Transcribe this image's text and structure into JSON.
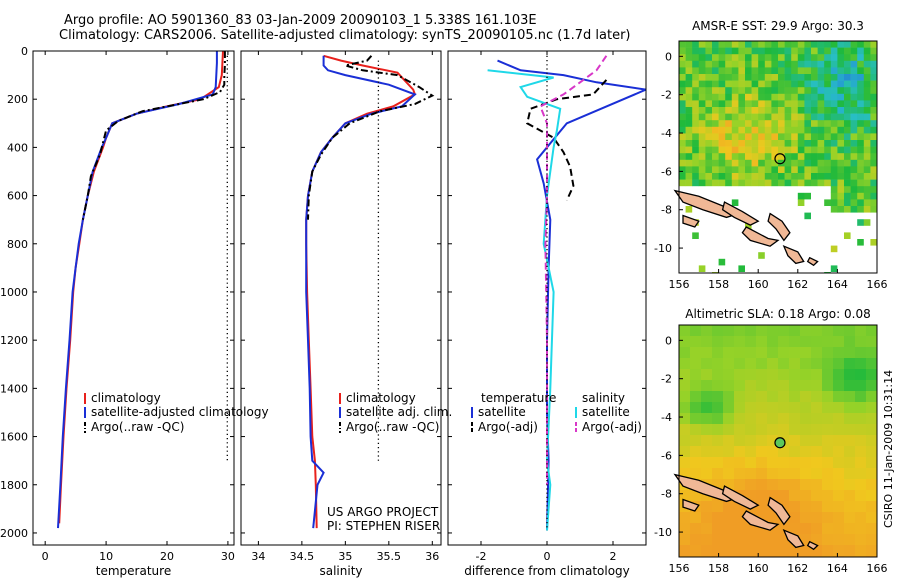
{
  "header": {
    "line1": "Argo profile: AO 5901360_83 03-Jan-2009 20090103_1 5.338S 161.103E",
    "line2": "Climatology: CARS2006. Satellite-adjusted climatology: synTS_20090105.nc (1.7d later)"
  },
  "credit": "CSIRO 11-Jan-2009 10:31:14",
  "colors": {
    "climatology": "#e8211c",
    "satellite": "#1a2fd6",
    "argo": "#000000",
    "salinity_satellite": "#1fd8e8",
    "salinity_argo": "#d838c8"
  },
  "chart_data": [
    {
      "type": "line",
      "xlabel": "temperature",
      "ylabel": "",
      "xlim": [
        -2,
        31
      ],
      "ylim": [
        2050,
        0
      ],
      "xticks": [
        0,
        10,
        20,
        30
      ],
      "yticks": [
        0,
        200,
        400,
        600,
        800,
        1000,
        1200,
        1400,
        1600,
        1800,
        2000
      ],
      "legend": [
        "climatology",
        "satellite-adjusted climatology",
        "Argo(..raw -QC)"
      ],
      "series": [
        {
          "name": "climatology",
          "style": "solid",
          "color": "#e8211c",
          "points": [
            [
              29.2,
              0
            ],
            [
              29.1,
              50
            ],
            [
              29.0,
              100
            ],
            [
              28.5,
              150
            ],
            [
              25.5,
              200
            ],
            [
              20,
              230
            ],
            [
              15,
              260
            ],
            [
              11,
              300
            ],
            [
              10,
              360
            ],
            [
              9.5,
              400
            ],
            [
              8.0,
              500
            ],
            [
              7.0,
              600
            ],
            [
              6.2,
              700
            ],
            [
              5.6,
              800
            ],
            [
              5.0,
              900
            ],
            [
              4.6,
              1000
            ],
            [
              4.1,
              1200
            ],
            [
              3.5,
              1400
            ],
            [
              3.0,
              1600
            ],
            [
              2.6,
              1800
            ],
            [
              2.3,
              1960
            ]
          ]
        },
        {
          "name": "satellite-adjusted climatology",
          "style": "solid",
          "color": "#1a2fd6",
          "points": [
            [
              28.2,
              0
            ],
            [
              28.2,
              50
            ],
            [
              28.1,
              100
            ],
            [
              28.0,
              150
            ],
            [
              27.5,
              180
            ],
            [
              22,
              220
            ],
            [
              15,
              260
            ],
            [
              11,
              300
            ],
            [
              10,
              360
            ],
            [
              9.3,
              400
            ],
            [
              7.8,
              500
            ],
            [
              7.0,
              600
            ],
            [
              6.2,
              700
            ],
            [
              5.5,
              800
            ],
            [
              5.0,
              900
            ],
            [
              4.5,
              1000
            ],
            [
              4.0,
              1200
            ],
            [
              3.4,
              1400
            ],
            [
              2.9,
              1600
            ],
            [
              2.5,
              1800
            ],
            [
              2.1,
              1980
            ]
          ]
        },
        {
          "name": "Argo(..raw -QC)",
          "style": "dashdot",
          "color": "#000000",
          "points": [
            [
              29.5,
              0
            ],
            [
              29.5,
              60
            ],
            [
              29.4,
              100
            ],
            [
              29.4,
              140
            ],
            [
              28.7,
              170
            ],
            [
              26,
              200
            ],
            [
              20,
              230
            ],
            [
              16,
              250
            ],
            [
              12,
              290
            ],
            [
              10,
              330
            ],
            [
              9.5,
              380
            ],
            [
              9.0,
              430
            ],
            [
              7.5,
              520
            ],
            [
              7.0,
              600
            ],
            [
              6.2,
              700
            ]
          ]
        },
        {
          "name": "",
          "style": "dotted",
          "color": "#000000",
          "points": [
            [
              29.9,
              20
            ],
            [
              29.9,
              1700
            ]
          ]
        }
      ]
    },
    {
      "type": "line",
      "xlabel": "salinity",
      "ylabel": "",
      "xlim": [
        33.8,
        36.1
      ],
      "ylim": [
        2050,
        0
      ],
      "xticks": [
        34,
        34.5,
        35,
        35.5,
        36
      ],
      "legend": [
        "climatology",
        "satellite adj. clim.",
        "Argo(..raw -QC)"
      ],
      "series": [
        {
          "name": "climatology",
          "style": "solid",
          "color": "#e8211c",
          "points": [
            [
              34.75,
              20
            ],
            [
              34.95,
              40
            ],
            [
              35.2,
              60
            ],
            [
              35.6,
              90
            ],
            [
              35.78,
              160
            ],
            [
              35.8,
              180
            ],
            [
              35.55,
              230
            ],
            [
              35.25,
              260
            ],
            [
              35.0,
              300
            ],
            [
              34.85,
              360
            ],
            [
              34.72,
              420
            ],
            [
              34.62,
              500
            ],
            [
              34.57,
              600
            ],
            [
              34.55,
              700
            ],
            [
              34.55,
              800
            ],
            [
              34.56,
              1000
            ],
            [
              34.58,
              1200
            ],
            [
              34.6,
              1400
            ],
            [
              34.62,
              1600
            ],
            [
              34.65,
              1700
            ],
            [
              34.66,
              1800
            ],
            [
              34.67,
              1980
            ]
          ]
        },
        {
          "name": "satellite adj. clim.",
          "style": "solid",
          "color": "#1a2fd6",
          "points": [
            [
              34.75,
              20
            ],
            [
              34.75,
              60
            ],
            [
              34.8,
              80
            ],
            [
              35.0,
              100
            ],
            [
              35.5,
              140
            ],
            [
              35.8,
              180
            ],
            [
              35.65,
              230
            ],
            [
              35.3,
              260
            ],
            [
              35.0,
              300
            ],
            [
              34.85,
              360
            ],
            [
              34.72,
              420
            ],
            [
              34.62,
              500
            ],
            [
              34.57,
              600
            ],
            [
              34.55,
              700
            ],
            [
              34.55,
              800
            ],
            [
              34.55,
              1000
            ],
            [
              34.57,
              1200
            ],
            [
              34.59,
              1400
            ],
            [
              34.6,
              1600
            ],
            [
              34.62,
              1700
            ],
            [
              34.75,
              1750
            ],
            [
              34.68,
              1800
            ],
            [
              34.63,
              1980
            ]
          ]
        },
        {
          "name": "Argo(..raw -QC)",
          "style": "dashdot",
          "color": "#000000",
          "points": [
            [
              35.3,
              20
            ],
            [
              35.25,
              40
            ],
            [
              35.0,
              60
            ],
            [
              35.2,
              80
            ],
            [
              35.6,
              100
            ],
            [
              35.85,
              150
            ],
            [
              36.0,
              185
            ],
            [
              35.8,
              220
            ],
            [
              35.4,
              250
            ],
            [
              35.05,
              300
            ],
            [
              34.85,
              360
            ],
            [
              34.72,
              430
            ],
            [
              34.62,
              500
            ],
            [
              34.58,
              600
            ],
            [
              34.57,
              700
            ]
          ]
        },
        {
          "name": "",
          "style": "dotted",
          "color": "#000000",
          "points": [
            [
              35.38,
              40
            ],
            [
              35.38,
              1700
            ]
          ]
        }
      ]
    },
    {
      "type": "line",
      "xlabel": "difference from climatology",
      "ylabel": "",
      "xlim": [
        -3,
        3
      ],
      "ylim": [
        2050,
        0
      ],
      "xticks": [
        -2,
        0,
        2
      ],
      "legend": [
        "temperature",
        "satellite",
        "Argo(-adj)",
        "salinity",
        "satellite",
        "Argo(-adj)"
      ],
      "series": [
        {
          "name": "satellite",
          "group": "temperature",
          "style": "solid",
          "color": "#1a2fd6",
          "points": [
            [
              -1.5,
              40
            ],
            [
              -0.8,
              80
            ],
            [
              0.5,
              100
            ],
            [
              1.5,
              130
            ],
            [
              3.0,
              160
            ],
            [
              0.6,
              300
            ],
            [
              0.3,
              350
            ],
            [
              -0.3,
              450
            ],
            [
              -0.1,
              550
            ],
            [
              0.1,
              700
            ],
            [
              0.05,
              900
            ],
            [
              0,
              1200
            ],
            [
              0,
              1500
            ],
            [
              0.05,
              1700
            ],
            [
              0,
              1990
            ]
          ]
        },
        {
          "name": "Argo(-adj)",
          "group": "temperature",
          "style": "dashed",
          "color": "#000000",
          "points": [
            [
              1.8,
              120
            ],
            [
              1.4,
              180
            ],
            [
              0.3,
              200
            ],
            [
              -0.5,
              240
            ],
            [
              -0.6,
              300
            ],
            [
              0.2,
              360
            ],
            [
              0.5,
              420
            ],
            [
              0.7,
              480
            ],
            [
              0.8,
              560
            ],
            [
              0.6,
              620
            ]
          ]
        },
        {
          "name": "satellite",
          "group": "salinity",
          "style": "solid",
          "color": "#1fd8e8",
          "points": [
            [
              -1.8,
              80
            ],
            [
              0.2,
              110
            ],
            [
              -0.8,
              150
            ],
            [
              -0.6,
              190
            ],
            [
              0.4,
              240
            ],
            [
              0.3,
              330
            ],
            [
              0.2,
              400
            ],
            [
              0,
              600
            ],
            [
              -0.1,
              800
            ],
            [
              0.2,
              1000
            ],
            [
              0.1,
              1400
            ],
            [
              0,
              1700
            ],
            [
              0.1,
              1800
            ],
            [
              0,
              1990
            ]
          ]
        },
        {
          "name": "Argo(-adj)",
          "group": "salinity",
          "style": "dashed",
          "color": "#d838c8",
          "points": [
            [
              1.8,
              20
            ],
            [
              1.5,
              80
            ],
            [
              0.5,
              180
            ],
            [
              -0.2,
              230
            ],
            [
              0,
              300
            ],
            [
              0,
              600
            ],
            [
              -0.05,
              800
            ],
            [
              0,
              1200
            ],
            [
              0,
              1600
            ],
            [
              0,
              1800
            ]
          ]
        },
        {
          "name": "",
          "style": "dotted",
          "color": "#000000",
          "points": [
            [
              0,
              20
            ],
            [
              0,
              1990
            ]
          ]
        }
      ]
    },
    {
      "type": "heatmap",
      "title": "AMSR-E SST: 29.9  Argo: 30.3",
      "xlim": [
        156,
        166
      ],
      "ylim": [
        -11.3,
        0.8
      ],
      "xticks": [
        156,
        158,
        160,
        162,
        164,
        166
      ],
      "yticks": [
        0,
        -2,
        -4,
        -6,
        -8,
        -10
      ],
      "marker": [
        161.1,
        -5.34
      ]
    },
    {
      "type": "heatmap",
      "title": "Altimetric SLA: 0.18  Argo: 0.08",
      "xlim": [
        156,
        166
      ],
      "ylim": [
        -11.3,
        0.8
      ],
      "xticks": [
        156,
        158,
        160,
        162,
        164,
        166
      ],
      "yticks": [
        0,
        -2,
        -4,
        -6,
        -8,
        -10
      ],
      "marker": [
        161.1,
        -5.34
      ]
    }
  ],
  "annotation": {
    "line1": "US ARGO PROJECT",
    "line2": "PI: STEPHEN RISER"
  }
}
